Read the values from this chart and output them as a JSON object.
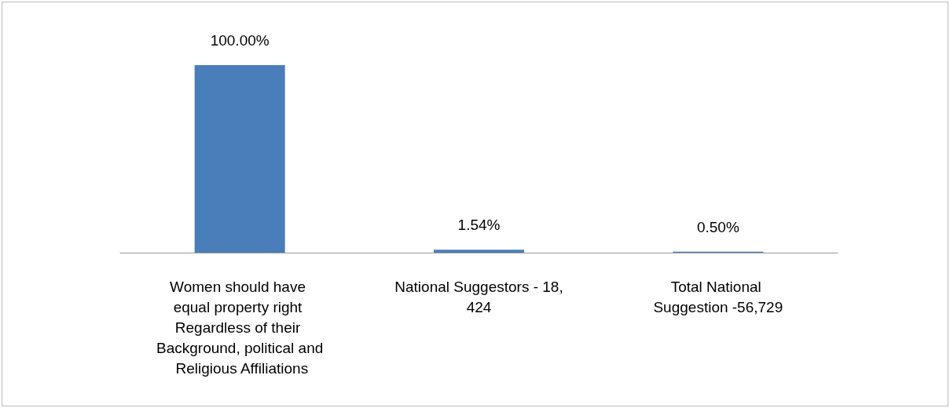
{
  "chart_data": {
    "type": "bar",
    "categories": [
      "Women should have equal property right Regardless of their Background, political and Religious Affiliations",
      "National Suggestors - 18,424",
      "Total National Suggestion -56,729"
    ],
    "values": [
      100,
      1.54,
      0.5
    ],
    "value_labels": [
      "100.00%",
      "1.54%",
      "0.50%"
    ],
    "color": "#4a7ebb"
  }
}
